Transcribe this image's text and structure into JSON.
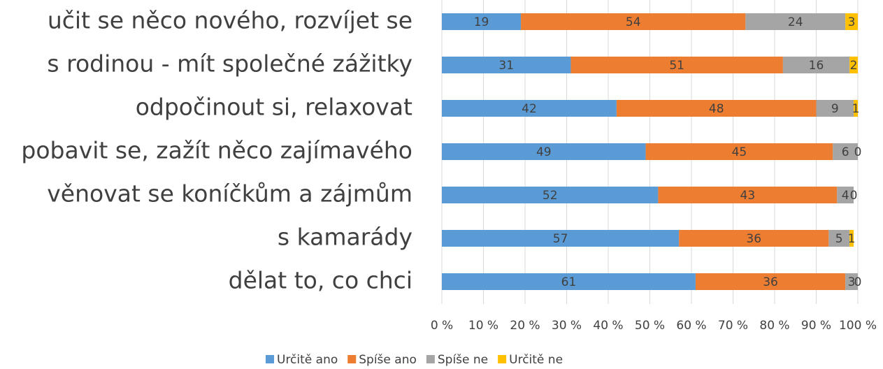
{
  "chart_data": {
    "type": "stacked-bar-horizontal",
    "categories": [
      "učit se něco nového, rozvíjet se",
      "s rodinou - mít společné zážitky",
      "odpočinout si, relaxovat",
      "pobavit se, zažít něco zajímavého",
      "věnovat se koníčkům a zájmům",
      "s kamarády",
      "dělat to, co chci"
    ],
    "series": [
      {
        "name": "Určitě ano",
        "color": "#5b9bd5",
        "values": [
          19,
          31,
          42,
          49,
          52,
          57,
          61
        ]
      },
      {
        "name": "Spíše ano",
        "color": "#ed7d31",
        "values": [
          54,
          51,
          48,
          45,
          43,
          36,
          36
        ]
      },
      {
        "name": "Spíše ne",
        "color": "#a5a5a5",
        "values": [
          24,
          16,
          9,
          6,
          4,
          5,
          3
        ]
      },
      {
        "name": "Určitě ne",
        "color": "#ffc000",
        "values": [
          3,
          2,
          1,
          0,
          0,
          1,
          0
        ]
      }
    ],
    "xlim": [
      0,
      100
    ],
    "xticks": [
      {
        "value": 0,
        "label": "0 %"
      },
      {
        "value": 10,
        "label": "10 %"
      },
      {
        "value": 20,
        "label": "20 %"
      },
      {
        "value": 30,
        "label": "30 %"
      },
      {
        "value": 40,
        "label": "40 %"
      },
      {
        "value": 50,
        "label": "50 %"
      },
      {
        "value": 60,
        "label": "60 %"
      },
      {
        "value": 70,
        "label": "70 %"
      },
      {
        "value": 80,
        "label": "80 %"
      },
      {
        "value": 90,
        "label": "90 %"
      },
      {
        "value": 100,
        "label": "100 %"
      }
    ],
    "grid": true,
    "legend": "bottom"
  }
}
